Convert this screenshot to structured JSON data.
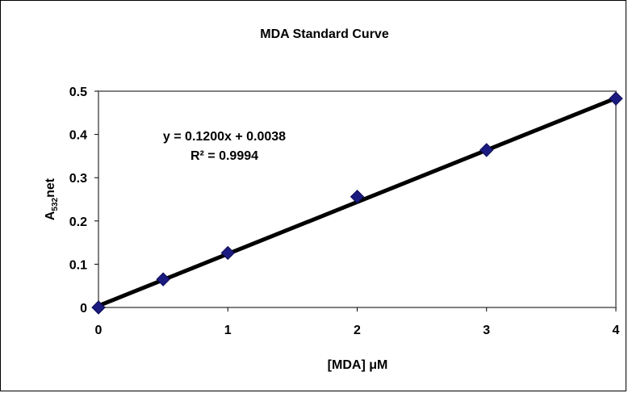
{
  "chart_data": {
    "type": "scatter",
    "title": "MDA Standard Curve",
    "xlabel": "[MDA] μM",
    "ylabel": {
      "main": "A",
      "subscript": "532",
      "suffix": "net"
    },
    "xlim": [
      0,
      4
    ],
    "ylim": [
      0,
      0.5
    ],
    "x_ticks": [
      "0",
      "1",
      "2",
      "3",
      "4"
    ],
    "y_ticks": [
      "0",
      "0.1",
      "0.2",
      "0.3",
      "0.4",
      "0.5"
    ],
    "grid": false,
    "legend": "none",
    "series": [
      {
        "marker": "diamond",
        "color": "#1a1a80",
        "points": [
          {
            "x": 0,
            "y": 0.0
          },
          {
            "x": 0.5,
            "y": 0.065
          },
          {
            "x": 1,
            "y": 0.126
          },
          {
            "x": 2,
            "y": 0.256
          },
          {
            "x": 3,
            "y": 0.364
          },
          {
            "x": 4,
            "y": 0.483
          }
        ]
      }
    ],
    "trendline": {
      "slope": 0.12,
      "intercept": 0.0038,
      "color": "#000000"
    },
    "annotations": {
      "equation": "y = 0.1200x + 0.0038",
      "r_squared": "R² = 0.9994"
    }
  }
}
